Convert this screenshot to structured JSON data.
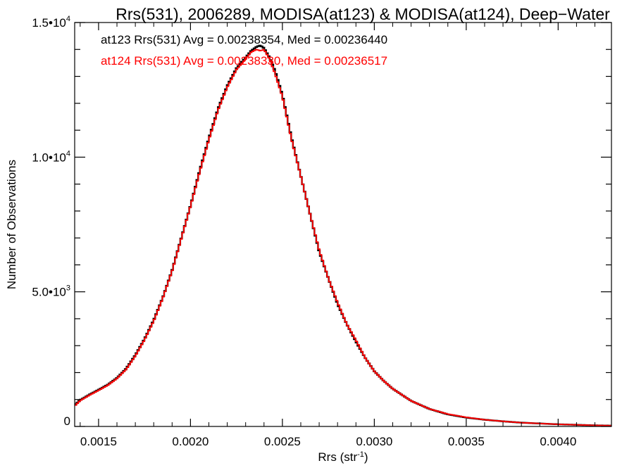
{
  "chart_data": {
    "type": "line",
    "title": "Rrs(531), 2006289, MODISA(at123) & MODISA(at124), Deep−Water",
    "xlabel": "Rrs (str",
    "xlabel_sup": "-1",
    "xlabel_close": ")",
    "ylabel": "Number of Observations",
    "xlim": [
      0.00137,
      0.00429
    ],
    "ylim": [
      0,
      15000
    ],
    "x_ticks": [
      0.0015,
      0.002,
      0.0025,
      0.003,
      0.0035,
      0.004
    ],
    "x_tick_labels": [
      "0.0015",
      "0.0020",
      "0.0025",
      "0.0030",
      "0.0035",
      "0.0040"
    ],
    "y_ticks": [
      {
        "value": 0,
        "base": "0",
        "exp": ""
      },
      {
        "value": 5000,
        "base": "5.0•10",
        "exp": "3"
      },
      {
        "value": 10000,
        "base": "1.0•10",
        "exp": "4"
      },
      {
        "value": 15000,
        "base": "1.5•10",
        "exp": "4"
      }
    ],
    "step": true,
    "grid": false,
    "series": [
      {
        "name": "at123",
        "color": "#000000",
        "label": "at123 Rrs(531) Avg = 0.00238354, Med = 0.00236440",
        "x": [
          0.00137,
          0.0014,
          0.00145,
          0.0015,
          0.00155,
          0.0016,
          0.00165,
          0.0017,
          0.00175,
          0.0018,
          0.00185,
          0.0019,
          0.00195,
          0.002,
          0.00205,
          0.0021,
          0.00215,
          0.0022,
          0.00225,
          0.0023,
          0.00233,
          0.00236,
          0.00238,
          0.0024,
          0.00243,
          0.00246,
          0.0025,
          0.00255,
          0.0026,
          0.00265,
          0.0027,
          0.00275,
          0.0028,
          0.00285,
          0.0029,
          0.00295,
          0.003,
          0.00305,
          0.0031,
          0.0032,
          0.0033,
          0.0034,
          0.0035,
          0.0036,
          0.0037,
          0.0038,
          0.0039,
          0.004,
          0.0041,
          0.0042,
          0.00429
        ],
        "y": [
          800,
          980,
          1180,
          1360,
          1550,
          1800,
          2150,
          2650,
          3250,
          3950,
          4800,
          5800,
          7000,
          8200,
          9500,
          10700,
          11800,
          12650,
          13300,
          13700,
          13950,
          14100,
          14150,
          14050,
          13700,
          13200,
          12300,
          10700,
          9300,
          7900,
          6500,
          5500,
          4550,
          3800,
          3150,
          2550,
          2050,
          1700,
          1400,
          950,
          650,
          450,
          330,
          250,
          190,
          140,
          110,
          80,
          60,
          40,
          30
        ]
      },
      {
        "name": "at124",
        "color": "#ff0000",
        "label": "at124 Rrs(531) Avg = 0.00238330, Med = 0.00236517",
        "x": [
          0.00137,
          0.0014,
          0.00145,
          0.0015,
          0.00155,
          0.0016,
          0.00165,
          0.0017,
          0.00175,
          0.0018,
          0.00185,
          0.0019,
          0.00195,
          0.002,
          0.00205,
          0.0021,
          0.00215,
          0.0022,
          0.00225,
          0.0023,
          0.00233,
          0.00236,
          0.00238,
          0.0024,
          0.00243,
          0.00246,
          0.0025,
          0.00255,
          0.0026,
          0.00265,
          0.0027,
          0.00275,
          0.0028,
          0.00285,
          0.0029,
          0.00295,
          0.003,
          0.00305,
          0.0031,
          0.0032,
          0.0033,
          0.0034,
          0.0035,
          0.0036,
          0.0037,
          0.0038,
          0.0039,
          0.004,
          0.0041,
          0.0042,
          0.00429
        ],
        "y": [
          760,
          960,
          1160,
          1340,
          1530,
          1780,
          2120,
          2620,
          3220,
          3920,
          4780,
          5780,
          6980,
          8180,
          9450,
          10650,
          11750,
          12600,
          13250,
          13650,
          13900,
          14000,
          13950,
          14000,
          13650,
          13100,
          12250,
          10650,
          9300,
          7900,
          6550,
          5500,
          4600,
          3800,
          3200,
          2550,
          2050,
          1700,
          1400,
          950,
          650,
          460,
          340,
          250,
          190,
          140,
          110,
          80,
          60,
          40,
          30
        ]
      }
    ]
  }
}
